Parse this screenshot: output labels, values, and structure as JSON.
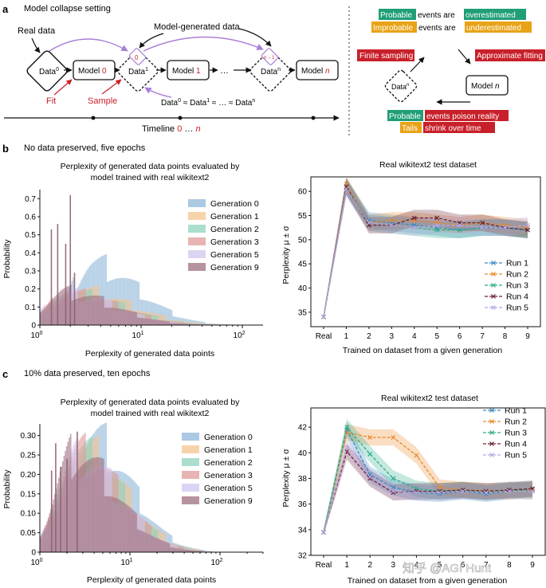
{
  "panel_a": {
    "label": "a",
    "title": "Model collapse setting",
    "real_data": "Real data",
    "model_generated": "Model-generated data",
    "fit": "Fit",
    "sample": "Sample",
    "data": "Data",
    "model": "Model",
    "sup0": "0",
    "sup1": "1",
    "supn": "n",
    "supn1": "n − 1",
    "model0_index": "0",
    "model1_index": "1",
    "modeln_index": "n",
    "ellipsis": "…",
    "approx_eq": "≈",
    "timeline": "Timeline",
    "timeline_range_start": "0",
    "timeline_range_sep": "…",
    "timeline_range_end": "n"
  },
  "panel_a_right": {
    "line1_hl": "Probable",
    "line1_rest": "events are",
    "line1_hl2": "overestimated",
    "line2_hl": "Improbable",
    "line2_rest": "events are",
    "line2_hl2": "underestimated",
    "finite_sampling": "Finite sampling",
    "approx_fitting": "Approximate fitting",
    "line3_hl": "Probable",
    "line3_hl2": "events poison reality",
    "line4_hl": "Tails",
    "line4_hl2": "shrink over time",
    "colors": {
      "green": "#1f9e77",
      "orange": "#e8a316",
      "red": "#c8202a",
      "purple": "#a97fd6"
    }
  },
  "panel_b": {
    "label": "b",
    "subtitle": "No data preserved, five epochs",
    "hist": {
      "title_line1": "Perplexity of generated data points evaluated by",
      "title_line2": "model trained with real wikitext2",
      "xlabel": "Perplexity of generated data points",
      "ylabel": "Probability",
      "yticks": [
        "0",
        "0.1",
        "0.2",
        "0.3",
        "0.4",
        "0.5",
        "0.6",
        "0.7"
      ],
      "xticks": [
        "10",
        "10",
        "10"
      ],
      "xtick_exps": [
        "0",
        "1",
        "2"
      ]
    },
    "line": {
      "title": "Real wikitext2 test dataset",
      "xlabel": "Trained on dataset from a given generation",
      "ylabel": "Perplexity μ ± σ",
      "yticks": [
        "35",
        "40",
        "45",
        "50",
        "55",
        "60"
      ]
    }
  },
  "panel_c": {
    "label": "c",
    "subtitle": "10% data preserved, ten epochs",
    "hist": {
      "title_line1": "Perplexity of generated data points evaluated by",
      "title_line2": "model trained with real wikitext2",
      "xlabel": "Perplexity of generated data points",
      "ylabel": "Probability",
      "yticks": [
        "0",
        "0.05",
        "0.10",
        "0.15",
        "0.20",
        "0.25",
        "0.30"
      ],
      "xticks": [
        "10",
        "10",
        "10"
      ],
      "xtick_exps": [
        "0",
        "1",
        "2"
      ]
    },
    "line": {
      "title": "Real wikitext2 test dataset",
      "xlabel": "Trained on dataset from a given generation",
      "ylabel": "Perplexity μ ± σ",
      "yticks": [
        "32",
        "34",
        "36",
        "38",
        "40",
        "42"
      ]
    }
  },
  "watermark": "知乎 @AGI Hunt",
  "chart_data": [
    {
      "id": "b-hist",
      "type": "histogram",
      "title": "Perplexity of generated data points evaluated by model trained with real wikitext2",
      "xlabel": "Perplexity of generated data points",
      "ylabel": "Probability",
      "xscale": "log",
      "xlim": [
        1,
        160
      ],
      "ylim": [
        0,
        0.75
      ],
      "series": [
        {
          "name": "Generation 0",
          "color": "#8fb7d8",
          "center": 3.3,
          "width": 0.2,
          "peak": 0.33
        },
        {
          "name": "Generation 1",
          "color": "#f4c48e",
          "center": 2.5,
          "width": 0.22,
          "peak": 0.19
        },
        {
          "name": "Generation 2",
          "color": "#8fd3bd",
          "center": 2.2,
          "width": 0.22,
          "peak": 0.17
        },
        {
          "name": "Generation 3",
          "color": "#e09a9a",
          "center": 2.0,
          "width": 0.22,
          "peak": 0.17
        },
        {
          "name": "Generation 5",
          "color": "#d2c6ef",
          "center": 1.9,
          "width": 0.21,
          "peak": 0.17
        },
        {
          "name": "Generation 9",
          "color": "#9e6f7f",
          "center": 1.8,
          "width": 0.21,
          "peak": 0.18
        }
      ],
      "spikes": [
        {
          "x": 1.3,
          "height": 0.53
        },
        {
          "x": 1.5,
          "height": 0.56
        },
        {
          "x": 1.8,
          "height": 0.45
        },
        {
          "x": 2.0,
          "height": 0.72
        },
        {
          "x": 2.2,
          "height": 0.29
        }
      ]
    },
    {
      "id": "b-line",
      "type": "line",
      "title": "Real wikitext2 test dataset",
      "xlabel": "Trained on dataset from a given generation",
      "ylabel": "Perplexity μ ± σ",
      "categories": [
        "Real",
        "1",
        "2",
        "3",
        "4",
        "5",
        "6",
        "7",
        "8",
        "9"
      ],
      "ylim": [
        32,
        63
      ],
      "series": [
        {
          "name": "Run 1",
          "color": "#3b8bc2",
          "values": [
            34,
            61,
            54,
            53.5,
            53,
            52.5,
            52,
            52.5,
            52.5,
            52
          ]
        },
        {
          "name": "Run 2",
          "color": "#e8892a",
          "values": [
            34,
            61.5,
            53.5,
            54,
            54,
            53.5,
            53,
            53.5,
            53,
            52.5
          ]
        },
        {
          "name": "Run 3",
          "color": "#2fab8b",
          "values": [
            34,
            61,
            53.5,
            53,
            52.5,
            52,
            52,
            52.5,
            52.5,
            52
          ]
        },
        {
          "name": "Run 4",
          "color": "#6b2330",
          "values": [
            34,
            61,
            53,
            53,
            54.5,
            54.5,
            53.5,
            53.5,
            52.5,
            52
          ]
        },
        {
          "name": "Run 5",
          "color": "#b8a6e6",
          "values": [
            34,
            60.5,
            53.5,
            53,
            52.5,
            53,
            53,
            52.5,
            52.5,
            53
          ]
        }
      ]
    },
    {
      "id": "c-hist",
      "type": "histogram",
      "title": "Perplexity of generated data points evaluated by model trained with real wikitext2",
      "xlabel": "Perplexity of generated data points",
      "ylabel": "Probability",
      "xscale": "log",
      "xlim": [
        1,
        300
      ],
      "ylim": [
        0,
        0.33
      ],
      "series": [
        {
          "name": "Generation 0",
          "color": "#8fb7d8",
          "center": 3.6,
          "width": 0.2,
          "peak": 0.29
        },
        {
          "name": "Generation 1",
          "color": "#f4c48e",
          "center": 3.0,
          "width": 0.21,
          "peak": 0.26
        },
        {
          "name": "Generation 2",
          "color": "#8fd3bd",
          "center": 2.8,
          "width": 0.21,
          "peak": 0.25
        },
        {
          "name": "Generation 3",
          "color": "#e09a9a",
          "center": 2.7,
          "width": 0.21,
          "peak": 0.25
        },
        {
          "name": "Generation 5",
          "color": "#d2c6ef",
          "center": 2.6,
          "width": 0.21,
          "peak": 0.24
        },
        {
          "name": "Generation 9",
          "color": "#9e6f7f",
          "center": 2.4,
          "width": 0.21,
          "peak": 0.25
        }
      ],
      "spikes": [
        {
          "x": 1.35,
          "height": 0.21
        },
        {
          "x": 1.5,
          "height": 0.28
        },
        {
          "x": 1.7,
          "height": 0.22
        },
        {
          "x": 2.0,
          "height": 0.24
        },
        {
          "x": 2.6,
          "height": 0.31
        }
      ]
    },
    {
      "id": "c-line",
      "type": "line",
      "title": "Real wikitext2 test dataset",
      "xlabel": "Trained on dataset from a given generation",
      "ylabel": "Perplexity μ ± σ",
      "categories": [
        "Real",
        "1",
        "2",
        "3",
        "4",
        "5",
        "6",
        "7",
        "8",
        "9"
      ],
      "ylim": [
        32,
        43.5
      ],
      "series": [
        {
          "name": "Run 1",
          "color": "#3b8bc2",
          "values": [
            33.8,
            41.8,
            38.3,
            37.3,
            36.9,
            36.8,
            37.0,
            36.8,
            37.0,
            37.2
          ]
        },
        {
          "name": "Run 2",
          "color": "#e8892a",
          "values": [
            33.8,
            41.6,
            41.2,
            41.2,
            39.8,
            37.3,
            37.1,
            37.0,
            37.0,
            37.1
          ]
        },
        {
          "name": "Run 3",
          "color": "#2fab8b",
          "values": [
            33.8,
            42.0,
            39.9,
            38.0,
            37.2,
            37.0,
            37.1,
            36.9,
            37.1,
            37.0
          ]
        },
        {
          "name": "Run 4",
          "color": "#6b2330",
          "values": [
            33.8,
            40.1,
            38.0,
            36.9,
            37.0,
            37.0,
            37.1,
            37.0,
            37.1,
            37.2
          ]
        },
        {
          "name": "Run 5",
          "color": "#b8a6e6",
          "values": [
            33.8,
            40.4,
            38.1,
            37.0,
            36.9,
            36.9,
            37.0,
            36.9,
            37.0,
            37.0
          ]
        }
      ]
    }
  ]
}
